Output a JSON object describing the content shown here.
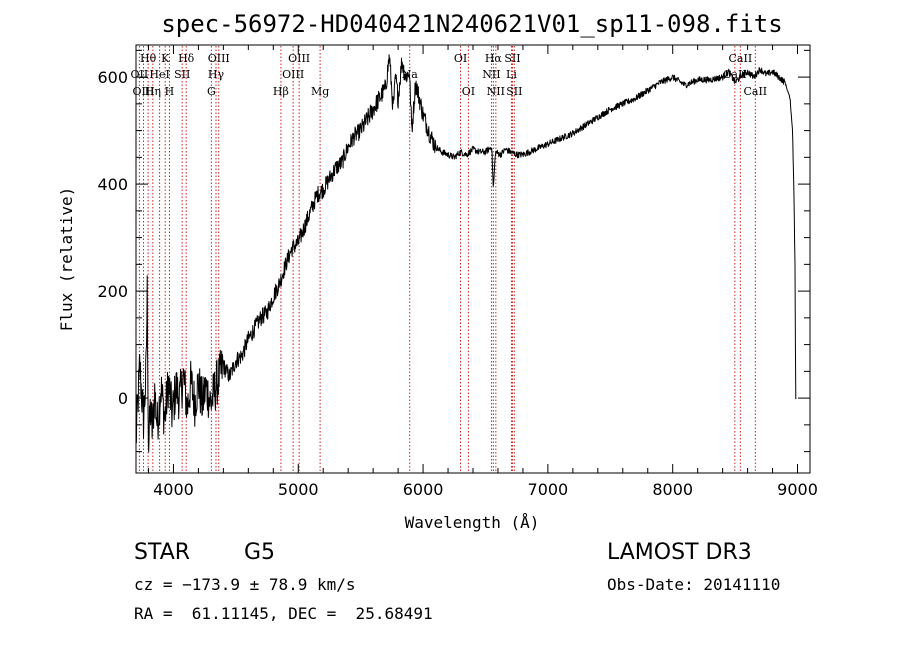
{
  "chart_data": {
    "type": "line",
    "title": "spec-56972-HD040421N240621V01_sp11-098.fits",
    "xlabel": "Wavelength (Å)",
    "ylabel": "Flux (relative)",
    "xlim": [
      3700,
      9100
    ],
    "ylim": [
      -140,
      660
    ],
    "xticks": [
      4000,
      5000,
      6000,
      7000,
      8000,
      9000
    ],
    "yticks": [
      0,
      200,
      400,
      600
    ],
    "grid": false,
    "spectrum": {
      "name": "flux",
      "x": [
        3700,
        3730,
        3760,
        3780,
        3790,
        3800,
        3815,
        3830,
        3850,
        3870,
        3900,
        3930,
        3960,
        3990,
        4020,
        4050,
        4080,
        4110,
        4140,
        4170,
        4200,
        4230,
        4260,
        4300,
        4350,
        4400,
        4450,
        4500,
        4550,
        4600,
        4650,
        4700,
        4750,
        4800,
        4850,
        4900,
        4950,
        5000,
        5050,
        5100,
        5150,
        5200,
        5250,
        5300,
        5350,
        5400,
        5450,
        5500,
        5550,
        5600,
        5650,
        5700,
        5730,
        5760,
        5780,
        5800,
        5830,
        5860,
        5890,
        5910,
        5940,
        5970,
        6000,
        6030,
        6060,
        6100,
        6150,
        6200,
        6250,
        6300,
        6350,
        6400,
        6450,
        6500,
        6550,
        6563,
        6580,
        6620,
        6660,
        6700,
        6750,
        6800,
        6850,
        6900,
        6950,
        7000,
        7100,
        7200,
        7300,
        7400,
        7500,
        7600,
        7700,
        7800,
        7900,
        8000,
        8100,
        8200,
        8300,
        8400,
        8450,
        8500,
        8540,
        8560,
        8600,
        8650,
        8700,
        8750,
        8800,
        8850,
        8900,
        8940,
        8960,
        8970,
        8980,
        8985,
        8990
      ],
      "y": [
        -80,
        60,
        -40,
        40,
        200,
        -100,
        -20,
        -60,
        10,
        -50,
        20,
        -40,
        30,
        -30,
        20,
        0,
        40,
        -20,
        30,
        -10,
        30,
        -10,
        20,
        -10,
        30,
        60,
        40,
        70,
        80,
        110,
        130,
        150,
        160,
        190,
        215,
        250,
        280,
        290,
        320,
        350,
        380,
        390,
        410,
        430,
        440,
        470,
        490,
        500,
        520,
        540,
        560,
        580,
        640,
        540,
        600,
        560,
        630,
        600,
        610,
        500,
        590,
        560,
        530,
        510,
        490,
        470,
        460,
        455,
        450,
        460,
        455,
        465,
        460,
        460,
        470,
        390,
        460,
        455,
        465,
        460,
        455,
        455,
        460,
        465,
        470,
        475,
        485,
        495,
        510,
        525,
        540,
        550,
        560,
        575,
        590,
        600,
        585,
        595,
        595,
        600,
        610,
        590,
        600,
        605,
        610,
        600,
        615,
        605,
        610,
        600,
        590,
        560,
        500,
        400,
        250,
        0,
        0
      ]
    },
    "spectral_lines": [
      {
        "label": "Hθ",
        "wavelength": 3797,
        "row": 1
      },
      {
        "label": "OII",
        "wavelength": 3727,
        "row": 2
      },
      {
        "label": "OIII",
        "wavelength": 3760,
        "row": 3
      },
      {
        "label": "K",
        "wavelength": 3934,
        "row": 1
      },
      {
        "label": "Hη",
        "wavelength": 3835,
        "row": 3
      },
      {
        "label": "HeI",
        "wavelength": 3889,
        "row": 2
      },
      {
        "label": "H",
        "wavelength": 3968,
        "row": 3
      },
      {
        "label": "SII",
        "wavelength": 4070,
        "row": 2
      },
      {
        "label": "Hδ",
        "wavelength": 4102,
        "row": 1
      },
      {
        "label": "OIII",
        "wavelength": 4363,
        "row": 1
      },
      {
        "label": "Hγ",
        "wavelength": 4341,
        "row": 2
      },
      {
        "label": "G",
        "wavelength": 4304,
        "row": 3
      },
      {
        "label": "Hβ",
        "wavelength": 4861,
        "row": 3
      },
      {
        "label": "OIII",
        "wavelength": 5007,
        "row": 1
      },
      {
        "label": "OIII",
        "wavelength": 4959,
        "row": 2
      },
      {
        "label": "Mg",
        "wavelength": 5175,
        "row": 3
      },
      {
        "label": "Na",
        "wavelength": 5893,
        "row": 2
      },
      {
        "label": "OI",
        "wavelength": 6300,
        "row": 1
      },
      {
        "label": "OI",
        "wavelength": 6363,
        "row": 3
      },
      {
        "label": "Hα",
        "wavelength": 6563,
        "row": 1
      },
      {
        "label": "NII",
        "wavelength": 6548,
        "row": 2
      },
      {
        "label": "NII",
        "wavelength": 6583,
        "row": 3
      },
      {
        "label": "SII",
        "wavelength": 6716,
        "row": 1
      },
      {
        "label": "Li",
        "wavelength": 6708,
        "row": 2
      },
      {
        "label": "SII",
        "wavelength": 6731,
        "row": 3
      },
      {
        "label": "CaII",
        "wavelength": 8542,
        "row": 1
      },
      {
        "label": "CaII",
        "wavelength": 8498,
        "row": 2
      },
      {
        "label": "CaII",
        "wavelength": 8662,
        "row": 3
      }
    ]
  },
  "info": {
    "object_class": "STAR",
    "subclass": "G5",
    "survey": "LAMOST DR3",
    "redshift": "cz = −173.9 ± 78.9 km/s",
    "obs_date": "Obs-Date: 20141110",
    "coords": "RA =  61.11145, DEC =  25.68491"
  },
  "colors": {
    "line_marker": "#cc2222",
    "spectrum": "#000000",
    "axis": "#000000"
  }
}
